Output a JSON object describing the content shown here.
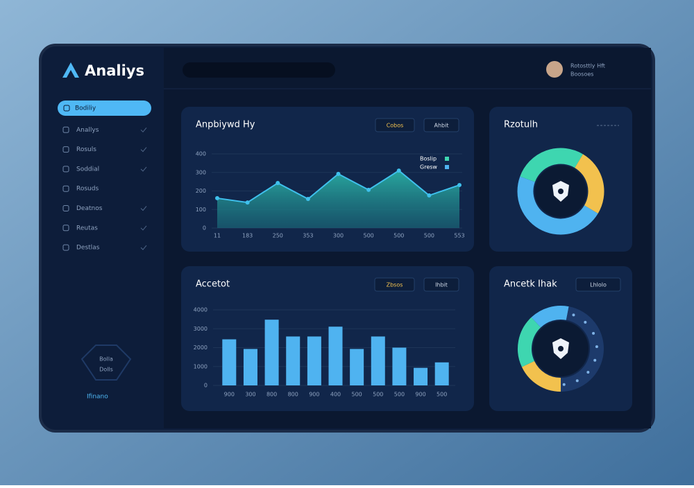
{
  "header": {
    "brand": "Analiys",
    "user_name": "Rotosttly Hft",
    "user_role": "Boosoes"
  },
  "sidebar": {
    "items": [
      "Bodiliy",
      "Anallys",
      "Rosuls",
      "Soddial",
      "Rosuds",
      "Deatnos",
      "Reutas",
      "Destlas"
    ],
    "badge": [
      "Bolla",
      "Dolls"
    ],
    "footer_link": "Ifinano"
  },
  "chart_data": [
    {
      "type": "line",
      "title": "Anpbiywd Hy",
      "controls": [
        "Cobos",
        "Ahbit"
      ],
      "legend_labels": [
        "Boslip",
        "Gresw"
      ],
      "categories": [
        "11",
        "183",
        "250",
        "353",
        "300",
        "500",
        "500",
        "500",
        "553"
      ],
      "series": [
        {
          "name": "Boslip",
          "color": "#3fc0ec",
          "values": [
            161,
            138,
            243,
            157,
            292,
            206,
            310,
            176,
            232
          ]
        }
      ],
      "ylim": [
        0,
        400
      ],
      "yticks": [
        0,
        100,
        200,
        300,
        400
      ],
      "grid": true
    },
    {
      "type": "pie",
      "title": "Rzotulh",
      "values": [
        28,
        25,
        47
      ],
      "colors": [
        "#3ed6b0",
        "#f2c14e",
        "#4fb3f0"
      ]
    },
    {
      "type": "bar",
      "title": "Accetot",
      "controls": [
        "Zbsos",
        "Ihbit"
      ],
      "categories": [
        "900",
        "300",
        "800",
        "800",
        "900",
        "400",
        "500",
        "500",
        "500",
        "900",
        "500"
      ],
      "values": [
        2440,
        1930,
        3480,
        2590,
        2590,
        3110,
        1930,
        2590,
        2000,
        930,
        1220
      ],
      "color": "#4fb3f0",
      "ylim": [
        0,
        4000
      ],
      "yticks": [
        0,
        1000,
        2000,
        3000,
        4000
      ],
      "grid": true
    },
    {
      "type": "pie",
      "title": "Ancetk Ihak",
      "controls": [
        "Lhlolo"
      ],
      "values": [
        18,
        20,
        15,
        47
      ],
      "colors": [
        "#f2c14e",
        "#3ed6b0",
        "#4fb3f0",
        "#1d3a6b"
      ]
    }
  ]
}
